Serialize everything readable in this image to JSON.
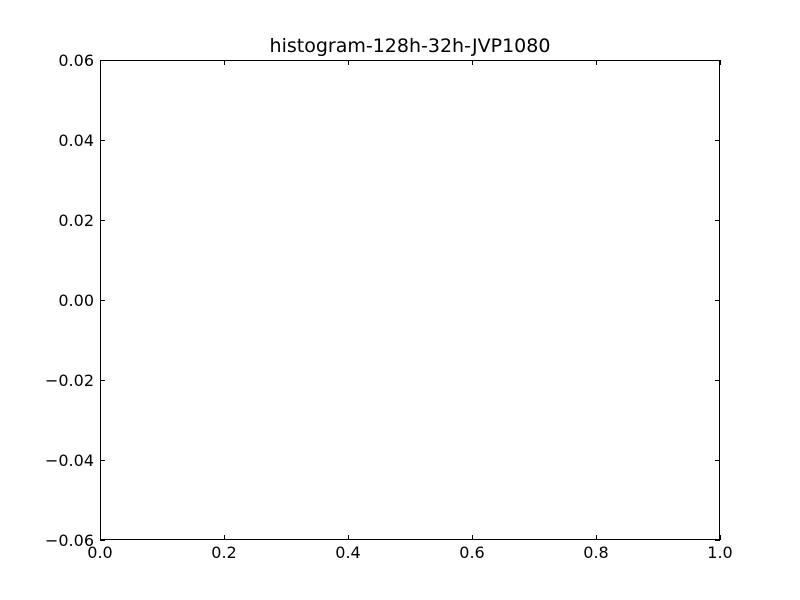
{
  "chart_data": {
    "type": "bar",
    "title": "histogram-128h-32h-JVP1080",
    "xlabel": "",
    "ylabel": "",
    "xlim": [
      0.0,
      1.0
    ],
    "ylim": [
      -0.06,
      0.06
    ],
    "categories": [],
    "values": [],
    "x_ticks": [
      {
        "value": 0.0,
        "label": "0.0"
      },
      {
        "value": 0.2,
        "label": "0.2"
      },
      {
        "value": 0.4,
        "label": "0.4"
      },
      {
        "value": 0.6,
        "label": "0.6"
      },
      {
        "value": 0.8,
        "label": "0.8"
      },
      {
        "value": 1.0,
        "label": "1.0"
      }
    ],
    "y_ticks": [
      {
        "value": -0.06,
        "label": "−0.06"
      },
      {
        "value": -0.04,
        "label": "−0.04"
      },
      {
        "value": -0.02,
        "label": "−0.02"
      },
      {
        "value": 0.0,
        "label": "0.00"
      },
      {
        "value": 0.02,
        "label": "0.02"
      },
      {
        "value": 0.04,
        "label": "0.04"
      },
      {
        "value": 0.06,
        "label": "0.06"
      }
    ],
    "grid": false,
    "legend": "none",
    "colors": {
      "axes": "#000000",
      "background": "#ffffff"
    }
  }
}
